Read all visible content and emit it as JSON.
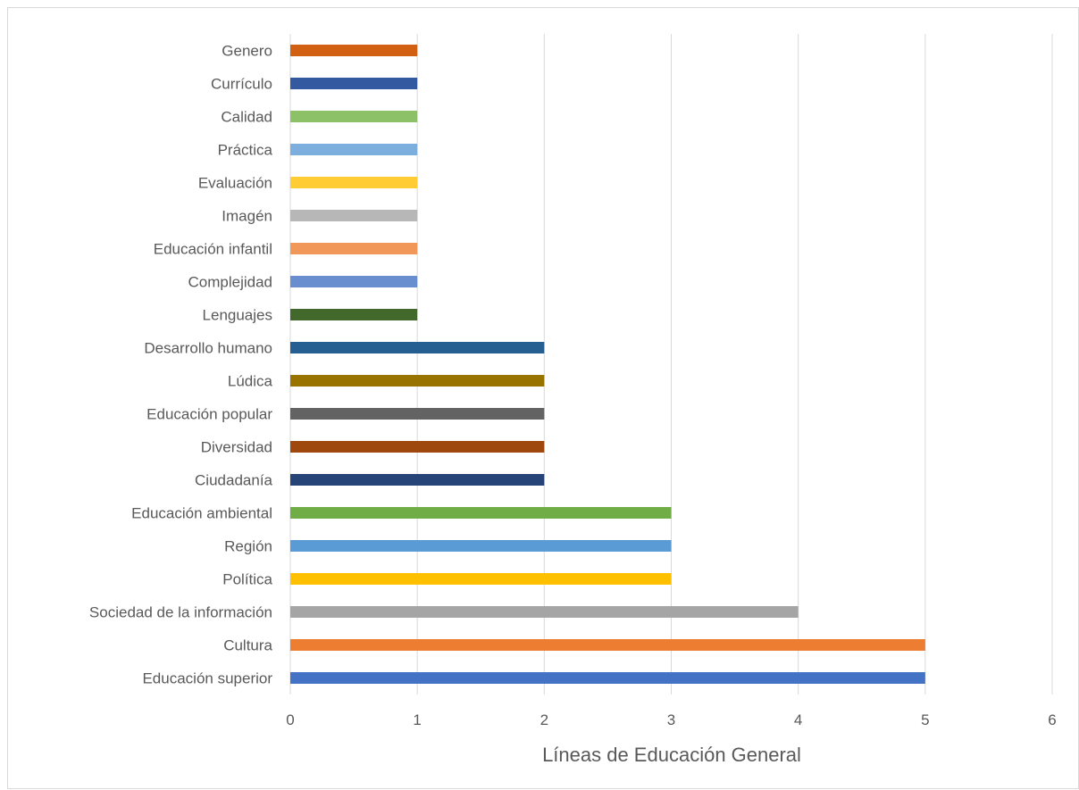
{
  "chart_data": {
    "type": "bar",
    "orientation": "horizontal",
    "xlabel": "Líneas de Educación General",
    "ylabel": "",
    "xlim": [
      0,
      6
    ],
    "xticks": [
      "0",
      "1",
      "2",
      "3",
      "4",
      "5",
      "6"
    ],
    "grid": "vertical",
    "legend": "none",
    "categories": [
      "Educación superior",
      "Cultura",
      "Sociedad de la información",
      "Política",
      "Región",
      "Educación ambiental",
      "Ciudadanía",
      "Diversidad",
      "Educación popular",
      "Lúdica",
      "Desarrollo humano",
      "Lenguajes",
      "Complejidad",
      "Educación infantil",
      "Imagén",
      "Evaluación",
      "Práctica",
      "Calidad",
      "Currículo",
      "Genero"
    ],
    "values": [
      5,
      5,
      4,
      3,
      3,
      3,
      2,
      2,
      2,
      2,
      2,
      1,
      1,
      1,
      1,
      1,
      1,
      1,
      1,
      1
    ],
    "colors": [
      "#4472C4",
      "#ED7D31",
      "#A5A5A5",
      "#FFC000",
      "#5B9BD5",
      "#70AD47",
      "#264478",
      "#9E480E",
      "#636363",
      "#997300",
      "#255E91",
      "#43682B",
      "#698ED0",
      "#F1975A",
      "#B7B7B7",
      "#FFCD33",
      "#7CAFDD",
      "#8CC168",
      "#335AA1",
      "#D26012"
    ]
  }
}
